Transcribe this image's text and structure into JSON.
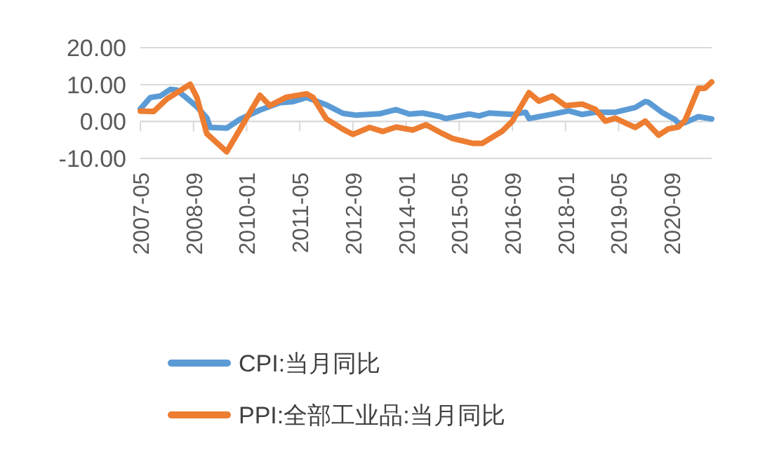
{
  "chart_data": {
    "type": "line",
    "xlim": [
      "2007-05",
      "2021-09"
    ],
    "xticks": [
      "2007-05",
      "2008-09",
      "2010-01",
      "2011-05",
      "2012-09",
      "2014-01",
      "2015-05",
      "2016-09",
      "2018-01",
      "2019-05",
      "2020-09"
    ],
    "ylim": [
      -10,
      20
    ],
    "yticks": [
      {
        "value": -10,
        "label": "-10.00"
      },
      {
        "value": 0,
        "label": "0.00"
      },
      {
        "value": 10,
        "label": "10.00"
      },
      {
        "value": 20,
        "label": "20.00"
      }
    ],
    "grid": "y",
    "legend": "bottom",
    "series": [
      {
        "name": "CPI:当月同比",
        "color": "#5b9bd5",
        "x": [
          "2007-05",
          "2007-08",
          "2007-11",
          "2008-02",
          "2008-04",
          "2008-07",
          "2008-10",
          "2009-01",
          "2009-02",
          "2009-07",
          "2009-11",
          "2010-05",
          "2010-11",
          "2011-03",
          "2011-07",
          "2011-10",
          "2012-01",
          "2012-06",
          "2012-10",
          "2013-05",
          "2013-10",
          "2014-02",
          "2014-06",
          "2014-11",
          "2015-01",
          "2015-08",
          "2015-11",
          "2016-02",
          "2016-09",
          "2017-01",
          "2017-02",
          "2017-08",
          "2018-02",
          "2018-06",
          "2018-10",
          "2019-04",
          "2019-10",
          "2020-01",
          "2020-02",
          "2020-06",
          "2020-10",
          "2020-11",
          "2021-01",
          "2021-05",
          "2021-09"
        ],
        "values": [
          3.4,
          6.5,
          6.9,
          8.7,
          8.5,
          6.3,
          4.0,
          1.0,
          -1.6,
          -1.8,
          0.6,
          3.1,
          5.1,
          5.4,
          6.5,
          5.5,
          4.5,
          2.2,
          1.7,
          2.1,
          3.2,
          2.0,
          2.3,
          1.4,
          0.8,
          2.0,
          1.5,
          2.3,
          1.9,
          2.5,
          0.8,
          1.8,
          2.9,
          1.9,
          2.5,
          2.5,
          3.8,
          5.4,
          5.2,
          2.5,
          0.5,
          -0.5,
          -0.3,
          1.3,
          0.7
        ]
      },
      {
        "name": "PPI:全部工业品:当月同比",
        "color": "#ed7d31",
        "x": [
          "2007-05",
          "2007-09",
          "2008-01",
          "2008-08",
          "2008-10",
          "2009-01",
          "2009-07",
          "2009-11",
          "2010-05",
          "2010-08",
          "2011-01",
          "2011-07",
          "2011-09",
          "2012-01",
          "2012-06",
          "2012-09",
          "2013-02",
          "2013-06",
          "2013-10",
          "2014-03",
          "2014-07",
          "2014-12",
          "2015-03",
          "2015-09",
          "2015-12",
          "2016-06",
          "2016-09",
          "2017-02",
          "2017-05",
          "2017-09",
          "2018-01",
          "2018-06",
          "2018-10",
          "2019-01",
          "2019-04",
          "2019-08",
          "2019-10",
          "2020-01",
          "2020-05",
          "2020-08",
          "2020-11",
          "2021-01",
          "2021-05",
          "2021-07",
          "2021-09"
        ],
        "values": [
          2.8,
          2.7,
          6.1,
          10.1,
          6.6,
          -3.3,
          -8.2,
          -2.1,
          7.1,
          4.3,
          6.6,
          7.5,
          6.5,
          0.7,
          -2.1,
          -3.5,
          -1.6,
          -2.7,
          -1.5,
          -2.3,
          -0.9,
          -3.3,
          -4.6,
          -5.9,
          -5.9,
          -2.6,
          0.1,
          7.8,
          5.5,
          6.9,
          4.3,
          4.7,
          3.3,
          0.1,
          0.9,
          -0.8,
          -1.6,
          0.1,
          -3.7,
          -2.0,
          -1.5,
          0.3,
          9.0,
          9.0,
          10.7
        ]
      }
    ]
  }
}
